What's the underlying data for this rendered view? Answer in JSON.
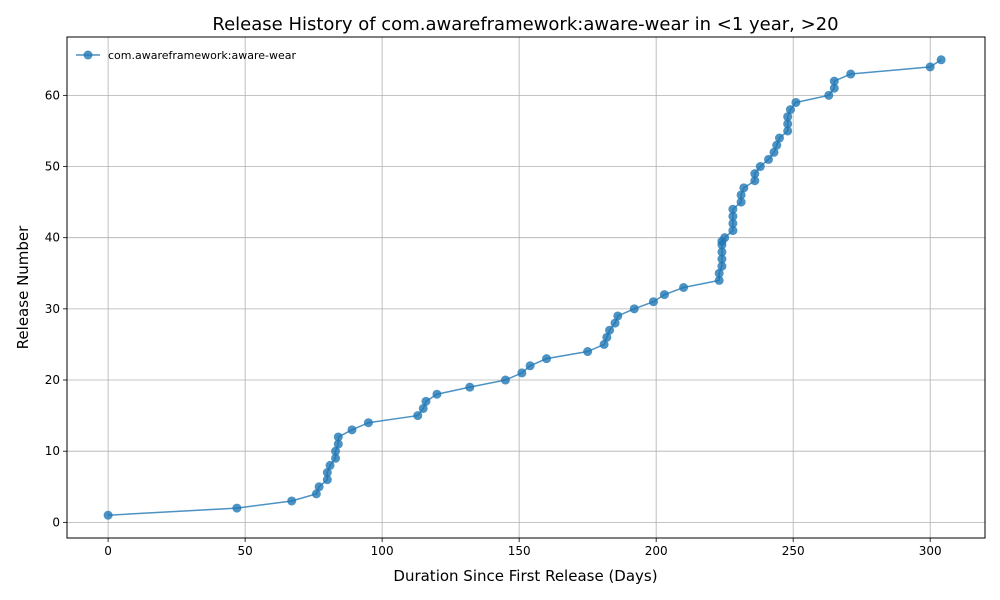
{
  "chart_data": {
    "type": "line",
    "title": "Release History of com.awareframework:aware-wear in <1 year, >20",
    "xlabel": "Duration Since First Release (Days)",
    "ylabel": "Release Number",
    "xlim": [
      -15,
      320
    ],
    "ylim": [
      -2.2,
      68.2
    ],
    "xticks": [
      0,
      50,
      100,
      150,
      200,
      250,
      300
    ],
    "yticks": [
      0,
      10,
      20,
      30,
      40,
      50,
      60
    ],
    "grid": true,
    "legend_position": "top-left",
    "series": [
      {
        "name": "com.awareframework:aware-wear",
        "color": "#1f77b4",
        "marker": "circle",
        "x": [
          0,
          47,
          67,
          76,
          77,
          80,
          80,
          81,
          83,
          83,
          84,
          84,
          89,
          95,
          113,
          115,
          116,
          120,
          132,
          145,
          151,
          154,
          160,
          175,
          181,
          182,
          183,
          185,
          186,
          192,
          199,
          203,
          210,
          223,
          223,
          224,
          224,
          224,
          224,
          224,
          225,
          228,
          228,
          228,
          228,
          231,
          231,
          232,
          236,
          236,
          238,
          241,
          243,
          244,
          245,
          248,
          248,
          248,
          249,
          251,
          263,
          265,
          265,
          271,
          300,
          304
        ],
        "y": [
          1,
          2,
          3,
          4,
          5,
          6,
          7,
          8,
          9,
          10,
          11,
          12,
          13,
          14,
          15,
          16,
          17,
          18,
          19,
          20,
          21,
          22,
          23,
          24,
          25,
          26,
          27,
          28,
          29,
          30,
          31,
          32,
          33,
          34,
          35,
          36,
          37,
          38,
          39,
          39.5,
          40,
          41,
          42,
          43,
          44,
          45,
          46,
          47,
          48,
          49,
          50,
          51,
          52,
          53,
          54,
          55,
          56,
          57,
          58,
          59,
          60,
          61,
          62,
          63,
          64,
          65
        ]
      }
    ]
  }
}
